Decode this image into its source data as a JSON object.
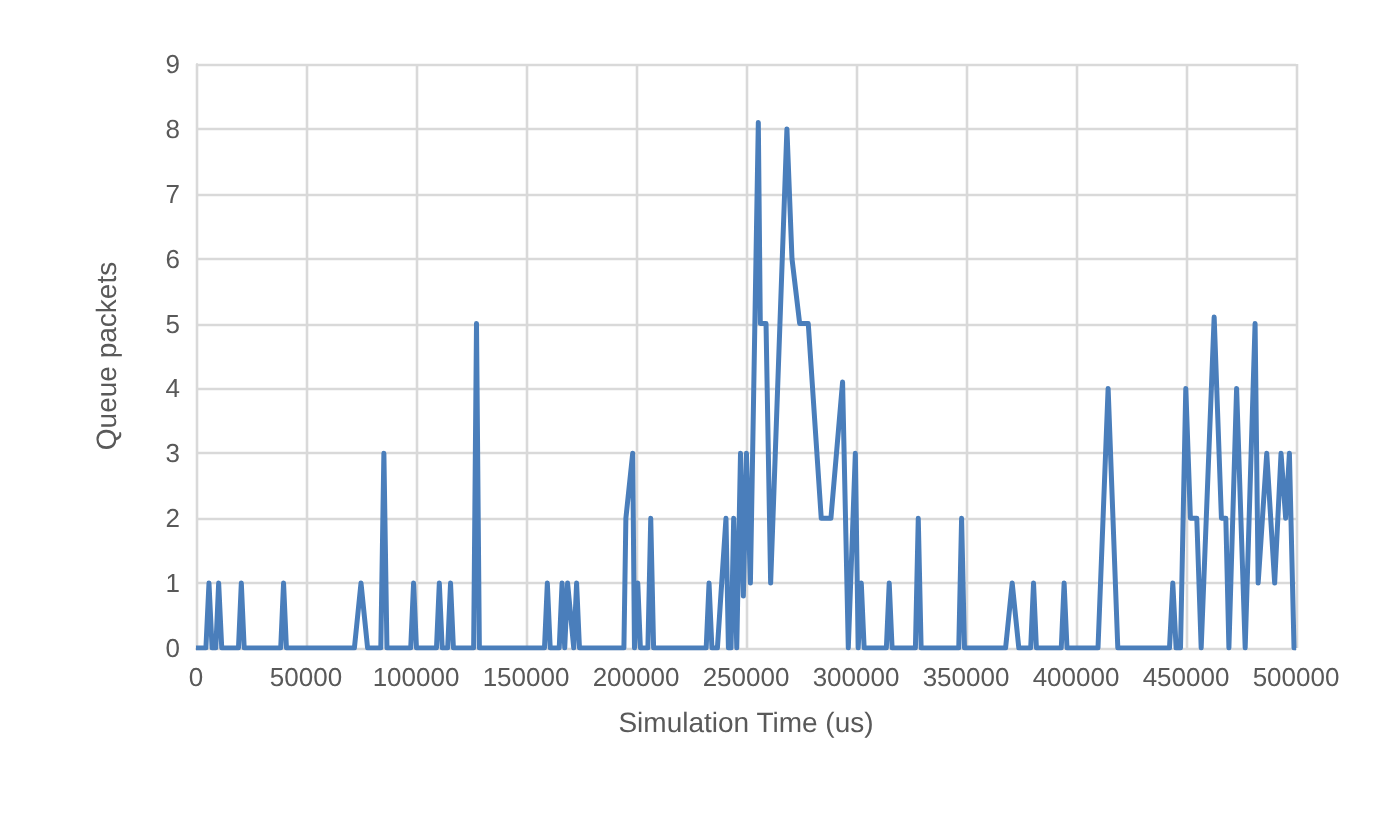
{
  "chart_data": {
    "type": "line",
    "xlabel": "Simulation Time (us)",
    "ylabel": "Queue packets",
    "xlim": [
      0,
      500000
    ],
    "xticks": [
      0,
      50000,
      100000,
      150000,
      200000,
      250000,
      300000,
      350000,
      400000,
      450000,
      500000
    ],
    "ylim": [
      0,
      9
    ],
    "yticks": [
      0,
      1,
      2,
      3,
      4,
      5,
      6,
      7,
      8,
      9
    ],
    "grid": true,
    "marker": "none",
    "line_style": "solid",
    "series": [
      {
        "color": "#4a7ebb",
        "x": [
          0,
          4500,
          5900,
          7300,
          9000,
          10300,
          11700,
          19300,
          20600,
          21900,
          38500,
          39800,
          41100,
          72000,
          75000,
          78000,
          84000,
          85400,
          86800,
          97600,
          98900,
          100200,
          109300,
          110600,
          111900,
          114400,
          115700,
          117000,
          126200,
          127500,
          128800,
          158400,
          159700,
          161000,
          165100,
          166400,
          167600,
          168900,
          171700,
          173000,
          174300,
          194500,
          195400,
          198500,
          199300,
          200800,
          202000,
          205400,
          206700,
          208000,
          231900,
          233200,
          234500,
          237000,
          240900,
          242000,
          243200,
          244400,
          245800,
          247500,
          248800,
          250200,
          252000,
          255600,
          256500,
          259100,
          261200,
          268600,
          270900,
          274400,
          278300,
          284200,
          288600,
          293900,
          296500,
          299700,
          301000,
          302400,
          303700,
          313800,
          315100,
          316400,
          327000,
          328300,
          329600,
          346700,
          348000,
          349300,
          368000,
          371000,
          374000,
          379400,
          380700,
          382000,
          393300,
          394600,
          395900,
          410000,
          414600,
          419000,
          442500,
          444000,
          445500,
          447500,
          449900,
          452000,
          454900,
          456900,
          462800,
          466100,
          468100,
          469500,
          473000,
          476900,
          481400,
          482800,
          486700,
          490300,
          493200,
          495300,
          497000,
          499100,
          500000
        ],
        "values": [
          0,
          0,
          1,
          0,
          0,
          1,
          0,
          0,
          1,
          0,
          0,
          1,
          0,
          0,
          1,
          0,
          0,
          3,
          0,
          0,
          1,
          0,
          0,
          1,
          0,
          0,
          1,
          0,
          0,
          5,
          0,
          0,
          1,
          0,
          0,
          1,
          0,
          1,
          0,
          1,
          0,
          0,
          2,
          3,
          0,
          1,
          0,
          0,
          2,
          0,
          0,
          1,
          0,
          0,
          2,
          0,
          0,
          2,
          0,
          3,
          0.8,
          3,
          1,
          8.1,
          5,
          5,
          1,
          8,
          6,
          5,
          5,
          2,
          2,
          4.1,
          0,
          3,
          0,
          1,
          0,
          0,
          1,
          0,
          0,
          2,
          0,
          0,
          2,
          0,
          0,
          1,
          0,
          0,
          1,
          0,
          0,
          1,
          0,
          0,
          4,
          0,
          0,
          1,
          0,
          0,
          4,
          2,
          2,
          0,
          5.1,
          2,
          2,
          0,
          4,
          0,
          5,
          1,
          3,
          1,
          3,
          2,
          3,
          0,
          0
        ]
      }
    ]
  }
}
